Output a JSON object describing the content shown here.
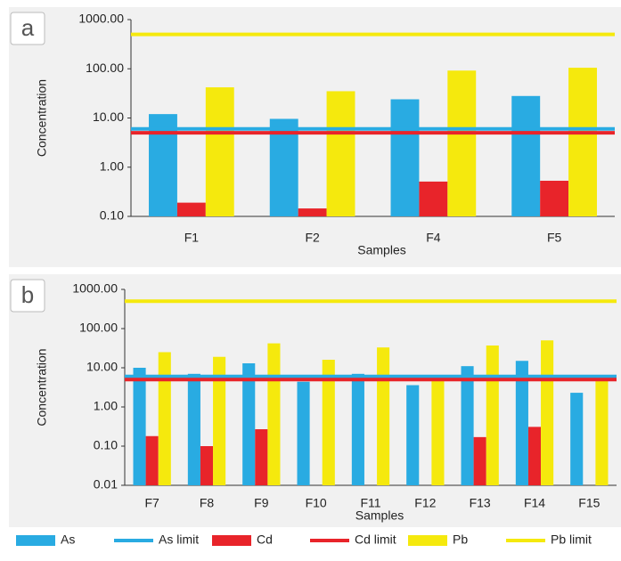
{
  "series_styles": [
    {
      "name": "As",
      "color": "#29abe2",
      "kind": "bar"
    },
    {
      "name": "As limit",
      "color": "#29abe2",
      "kind": "line"
    },
    {
      "name": "Cd",
      "color": "#e8242a",
      "kind": "bar"
    },
    {
      "name": "Cd limit",
      "color": "#e8242a",
      "kind": "line"
    },
    {
      "name": "Pb",
      "color": "#f5e90d",
      "kind": "bar"
    },
    {
      "name": "Pb limit",
      "color": "#f5e90d",
      "kind": "line"
    }
  ],
  "legend_position": "bottom",
  "chart_data": [
    {
      "type": "bar",
      "label": "a",
      "y_label": "Concentration",
      "x_label": "Samples",
      "log_scale": true,
      "categories": [
        "F1",
        "F2",
        "F4",
        "F5"
      ],
      "series": [
        {
          "values": [
            12,
            9.6,
            24,
            28
          ]
        },
        {
          "value": 6
        },
        {
          "values": [
            0.19,
            0.145,
            0.51,
            0.53
          ]
        },
        {
          "value": 5
        },
        {
          "values": [
            42,
            35,
            92,
            105
          ]
        },
        {
          "value": 500
        }
      ],
      "ylim": [
        0.1,
        1000
      ],
      "yticks": [
        {
          "value": 0.1,
          "label": "0.10"
        },
        {
          "value": 1,
          "label": "1.00"
        },
        {
          "value": 10,
          "label": "10.00"
        },
        {
          "value": 100,
          "label": "100.00"
        },
        {
          "value": 1000,
          "label": "1000.00"
        }
      ]
    },
    {
      "type": "bar",
      "label": "b",
      "y_label": "Concentration",
      "x_label": "Samples",
      "log_scale": true,
      "categories": [
        "F7",
        "F8",
        "F9",
        "F10",
        "F11",
        "F12",
        "F13",
        "F14",
        "F15"
      ],
      "series": [
        {
          "values": [
            10,
            7,
            13,
            4.4,
            7,
            3.6,
            11,
            15,
            2.3
          ]
        },
        {
          "value": 6
        },
        {
          "values": [
            0.18,
            0.1,
            0.27,
            null,
            null,
            null,
            0.17,
            0.31,
            null
          ]
        },
        {
          "value": 5
        },
        {
          "values": [
            25,
            19,
            42,
            16,
            33,
            6.5,
            37,
            50,
            5
          ]
        },
        {
          "value": 500
        }
      ],
      "ylim": [
        0.01,
        1000
      ],
      "yticks": [
        {
          "value": 0.01,
          "label": "0.01"
        },
        {
          "value": 0.1,
          "label": "0.10"
        },
        {
          "value": 1,
          "label": "1.00"
        },
        {
          "value": 10,
          "label": "10.00"
        },
        {
          "value": 100,
          "label": "100.00"
        },
        {
          "value": 1000,
          "label": "1000.00"
        }
      ]
    }
  ]
}
